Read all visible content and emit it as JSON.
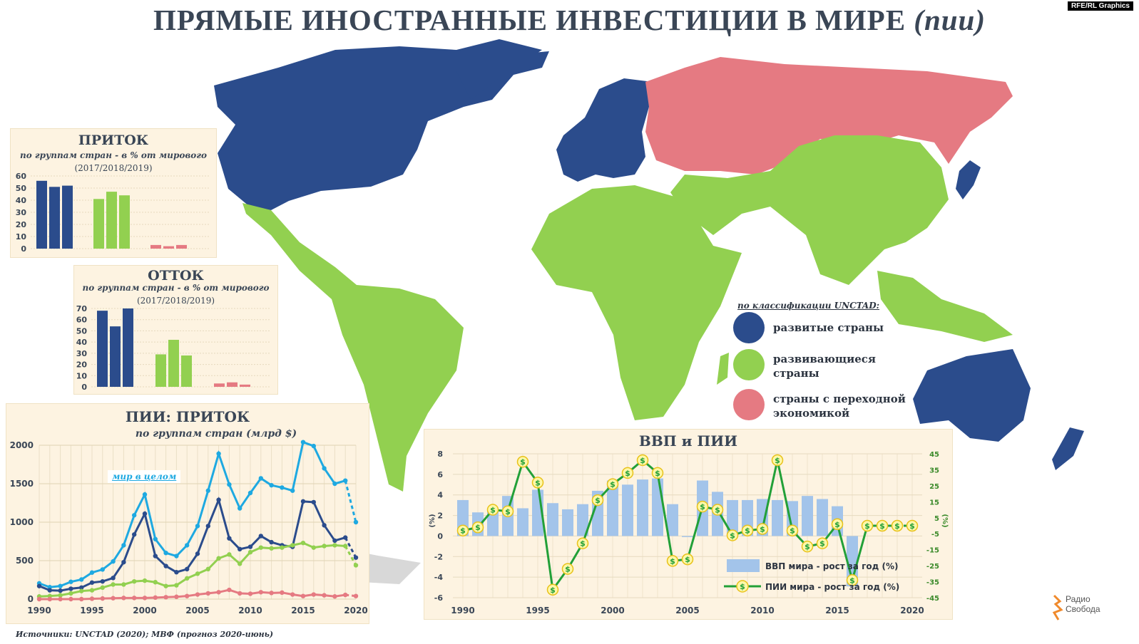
{
  "title": {
    "main": "ПРЯМЫЕ ИНОСТРАННЫЕ ИНВЕСТИЦИИ В МИРЕ",
    "paren": "(пии)"
  },
  "credit": "RFE/RL Graphics",
  "colors": {
    "developed": "#2b4c8c",
    "developing": "#92d050",
    "transition": "#e57a82",
    "world": "#1ea9e1",
    "gdp_bar": "#a3c4ea",
    "fdi_line": "#22a038",
    "panel_bg": "#fdf3e1"
  },
  "map_legend": {
    "title": "по классификации UNCTAD:",
    "items": [
      {
        "label": "развитые страны",
        "color": "#2b4c8c"
      },
      {
        "label": "развивающиеся страны",
        "color": "#92d050"
      },
      {
        "label": "страны с переходной экономикой",
        "color": "#e57a82"
      }
    ]
  },
  "inflow_panel": {
    "title": "ПРИТОК",
    "subtitle": "по группам стран - в % от мирового",
    "years": "(2017/2018/2019)"
  },
  "outflow_panel": {
    "title": "ОТТОК",
    "subtitle": "по группам стран - в % от мирового",
    "years": "(2017/2018/2019)"
  },
  "line_panel": {
    "title": "ПИИ: ПРИТОК",
    "subtitle": "по группам стран (млрд $)",
    "annotation": "мир в целом"
  },
  "gdp_panel": {
    "title": "ВВП и ПИИ",
    "legend_bar": "ВВП мира - рост за год (%)",
    "legend_line": "ПИИ мира - рост за год (%)",
    "left_unit": "(%)",
    "right_unit": "(%)"
  },
  "source": "Источники: UNCTAD (2020); МВФ (прогноз 2020-июнь)",
  "logo": {
    "line1": "Радио",
    "line2": "Свобода"
  },
  "chart_data": [
    {
      "type": "bar",
      "title": "ПРИТОК",
      "ylim": [
        0,
        60
      ],
      "yticks": [
        0,
        10,
        20,
        30,
        40,
        50,
        60
      ],
      "series": [
        {
          "group": "developed",
          "values": [
            56,
            51,
            52
          ],
          "color": "#2b4c8c"
        },
        {
          "group": "developing",
          "values": [
            41,
            47,
            44
          ],
          "color": "#92d050"
        },
        {
          "group": "transition",
          "values": [
            3,
            2,
            3
          ],
          "color": "#e57a82"
        }
      ]
    },
    {
      "type": "bar",
      "title": "ОТТОК",
      "ylim": [
        0,
        70
      ],
      "yticks": [
        0,
        10,
        20,
        30,
        40,
        50,
        60,
        70
      ],
      "series": [
        {
          "group": "developed",
          "values": [
            68,
            54,
            70
          ],
          "color": "#2b4c8c"
        },
        {
          "group": "developing",
          "values": [
            29,
            42,
            28
          ],
          "color": "#92d050"
        },
        {
          "group": "transition",
          "values": [
            3,
            4,
            2
          ],
          "color": "#e57a82"
        }
      ]
    },
    {
      "type": "line",
      "title": "ПИИ: ПРИТОК",
      "xlim": [
        1990,
        2020
      ],
      "ylim": [
        0,
        2000
      ],
      "xticks": [
        1990,
        1995,
        2000,
        2005,
        2010,
        2015,
        2020
      ],
      "yticks": [
        0,
        500,
        1000,
        1500,
        2000
      ],
      "x": [
        1990,
        1991,
        1992,
        1993,
        1994,
        1995,
        1996,
        1997,
        1998,
        1999,
        2000,
        2001,
        2002,
        2003,
        2004,
        2005,
        2006,
        2007,
        2008,
        2009,
        2010,
        2011,
        2012,
        2013,
        2014,
        2015,
        2016,
        2017,
        2018,
        2019,
        2020
      ],
      "series": [
        {
          "name": "мир в целом",
          "color": "#1ea9e1",
          "values": [
            205,
            155,
            170,
            225,
            255,
            345,
            385,
            490,
            700,
            1090,
            1360,
            780,
            600,
            560,
            700,
            950,
            1410,
            1890,
            1490,
            1180,
            1380,
            1570,
            1480,
            1450,
            1410,
            2040,
            1990,
            1700,
            1500,
            1540,
            1000
          ]
        },
        {
          "group": "developed",
          "color": "#2b4c8c",
          "values": [
            170,
            115,
            110,
            135,
            150,
            215,
            230,
            275,
            480,
            840,
            1110,
            560,
            430,
            350,
            390,
            590,
            950,
            1290,
            790,
            650,
            680,
            820,
            740,
            700,
            680,
            1270,
            1260,
            960,
            760,
            800,
            540
          ]
        },
        {
          "group": "developing",
          "color": "#92d050",
          "values": [
            35,
            40,
            50,
            75,
            105,
            115,
            150,
            190,
            190,
            230,
            240,
            220,
            170,
            180,
            270,
            330,
            390,
            530,
            580,
            460,
            610,
            670,
            660,
            670,
            700,
            730,
            670,
            690,
            700,
            690,
            440
          ]
        },
        {
          "group": "transition",
          "color": "#e57a82",
          "values": [
            0,
            0,
            0,
            0,
            0,
            5,
            8,
            12,
            15,
            15,
            15,
            20,
            25,
            30,
            40,
            60,
            75,
            90,
            120,
            75,
            70,
            90,
            80,
            85,
            60,
            40,
            60,
            50,
            35,
            55,
            40
          ]
        }
      ]
    },
    {
      "type": "bar",
      "title": "ВВП и ПИИ",
      "x": [
        1990,
        1991,
        1992,
        1993,
        1994,
        1995,
        1996,
        1997,
        1998,
        1999,
        2000,
        2001,
        2002,
        2003,
        2004,
        2005,
        2006,
        2007,
        2008,
        2009,
        2010,
        2011,
        2012,
        2013,
        2014,
        2015,
        2016,
        2017,
        2018,
        2019,
        2020
      ],
      "xticks": [
        1990,
        1995,
        2000,
        2005,
        2010,
        2015,
        2020
      ],
      "left_ylim": [
        -6,
        8
      ],
      "left_yticks": [
        -6,
        -4,
        -2,
        0,
        2,
        4,
        6,
        8
      ],
      "right_ylim": [
        -45,
        45
      ],
      "right_yticks": [
        -45,
        -35,
        -25,
        -15,
        -5,
        5,
        15,
        25,
        35,
        45
      ],
      "series": [
        {
          "name": "ВВП мира - рост за год (%)",
          "axis": "left",
          "kind": "bar",
          "color": "#a3c4ea",
          "values": [
            3.5,
            2.3,
            2.4,
            3.9,
            2.7,
            4.5,
            3.2,
            2.6,
            3.1,
            4.4,
            5.4,
            5.0,
            5.5,
            5.6,
            3.1,
            -0.1,
            5.4,
            4.3,
            3.5,
            3.5,
            3.6,
            3.5,
            3.4,
            3.9,
            3.6,
            2.9,
            -4.9,
            null,
            null,
            null,
            null
          ]
        },
        {
          "name": "ПИИ мира - рост за год (%)",
          "axis": "right",
          "kind": "line",
          "color": "#22a038",
          "values": [
            -3,
            -1,
            10,
            9,
            40,
            27,
            -40,
            -27,
            -11,
            16,
            26,
            33,
            41,
            33,
            -22,
            -21,
            12,
            10,
            -6,
            -3,
            -2,
            41,
            -3,
            -13,
            -11,
            1,
            -34,
            null,
            null,
            null,
            null
          ]
        }
      ]
    }
  ]
}
